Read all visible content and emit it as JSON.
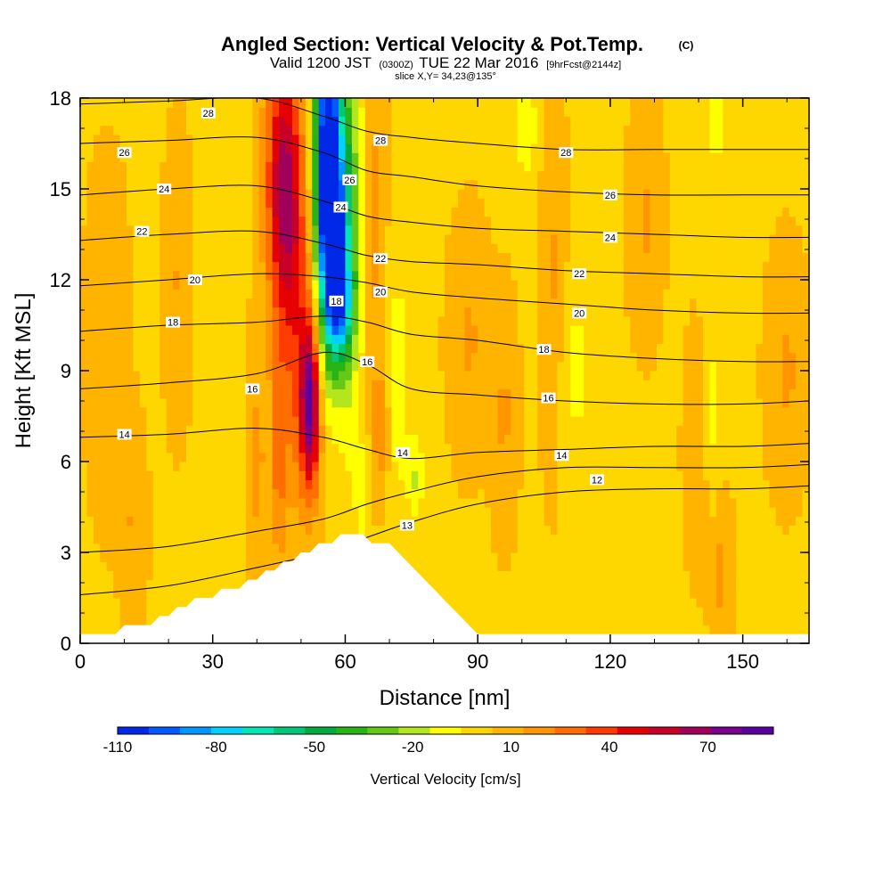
{
  "title": {
    "main": "Angled Section: Vertical Velocity & Pot.Temp.",
    "main_suffix": "(C)",
    "valid_prefix": "Valid 1200 JST",
    "valid_z": "(0300Z)",
    "valid_date": "TUE 22 Mar 2016",
    "fcst": "[9hrFcst@2144z]",
    "slice": "slice X,Y= 34,23@135°"
  },
  "chart_data": {
    "type": "heatmap",
    "title": "Angled Section: Vertical Velocity & Pot.Temp.",
    "xlabel": "Distance [nm]",
    "ylabel": "Height [Kft MSL]",
    "xlim": [
      0,
      165
    ],
    "ylim": [
      0,
      18
    ],
    "xticks": [
      0,
      30,
      60,
      90,
      120,
      150
    ],
    "yticks": [
      0,
      3,
      6,
      9,
      12,
      15,
      18
    ],
    "colorbar": {
      "title": "Vertical Velocity [cm/s]",
      "tick_labels": [
        "-110",
        "-80",
        "-50",
        "-20",
        "10",
        "40",
        "70"
      ],
      "tick_values": [
        -110,
        -80,
        -50,
        -20,
        10,
        40,
        70
      ],
      "range": [
        -110,
        90
      ],
      "colors": [
        "#0028e6",
        "#005aff",
        "#0096ff",
        "#00d2ff",
        "#00e6b4",
        "#00c878",
        "#00aa3c",
        "#28b414",
        "#64c814",
        "#b4e61e",
        "#ffff00",
        "#ffd700",
        "#ffb400",
        "#ff9600",
        "#ff6e00",
        "#ff3c00",
        "#e60000",
        "#c80028",
        "#a0005a",
        "#78008c",
        "#5a00a0"
      ]
    },
    "terrain": [
      [
        0,
        0.3
      ],
      [
        8,
        0.3
      ],
      [
        10,
        0.6
      ],
      [
        16,
        0.6
      ],
      [
        18,
        0.9
      ],
      [
        20,
        0.9
      ],
      [
        22,
        1.2
      ],
      [
        24,
        1.2
      ],
      [
        26,
        1.5
      ],
      [
        30,
        1.5
      ],
      [
        32,
        1.8
      ],
      [
        36,
        1.8
      ],
      [
        38,
        2.1
      ],
      [
        40,
        2.1
      ],
      [
        42,
        2.4
      ],
      [
        44,
        2.4
      ],
      [
        46,
        2.7
      ],
      [
        48,
        2.7
      ],
      [
        50,
        3.0
      ],
      [
        52,
        3.0
      ],
      [
        54,
        3.3
      ],
      [
        57,
        3.3
      ],
      [
        59,
        3.6
      ],
      [
        64,
        3.6
      ],
      [
        66,
        3.3
      ],
      [
        70,
        3.3
      ],
      [
        72,
        3.0
      ],
      [
        74,
        2.7
      ],
      [
        76,
        2.4
      ],
      [
        78,
        2.1
      ],
      [
        80,
        1.8
      ],
      [
        82,
        1.5
      ],
      [
        84,
        1.2
      ],
      [
        86,
        0.9
      ],
      [
        88,
        0.6
      ],
      [
        90,
        0.3
      ],
      [
        165,
        0.3
      ]
    ],
    "series": [
      {
        "name": "12",
        "x": [
          0,
          20,
          40,
          55,
          65,
          75,
          90,
          110,
          130,
          150,
          165
        ],
        "y": [
          1.6,
          1.9,
          2.5,
          3.0,
          3.5,
          4.0,
          4.6,
          5.0,
          5.1,
          5.1,
          5.2
        ]
      },
      {
        "name": "13",
        "x": [
          0,
          20,
          40,
          55,
          65,
          75,
          90,
          110,
          130,
          150,
          165
        ],
        "y": [
          3.0,
          3.2,
          3.7,
          4.1,
          4.6,
          5.0,
          5.5,
          5.8,
          5.8,
          5.8,
          5.9
        ]
      },
      {
        "name": "14",
        "x": [
          0,
          20,
          40,
          55,
          65,
          75,
          90,
          110,
          130,
          150,
          165
        ],
        "y": [
          6.8,
          6.9,
          7.1,
          6.8,
          6.4,
          6.1,
          6.3,
          6.4,
          6.5,
          6.5,
          6.6
        ]
      },
      {
        "name": "16",
        "x": [
          0,
          20,
          40,
          55,
          65,
          75,
          90,
          110,
          130,
          150,
          165
        ],
        "y": [
          8.4,
          8.6,
          8.9,
          9.6,
          9.2,
          8.4,
          8.2,
          8.0,
          7.9,
          7.9,
          8.0
        ]
      },
      {
        "name": "18",
        "x": [
          0,
          20,
          40,
          55,
          65,
          75,
          90,
          110,
          130,
          150,
          165
        ],
        "y": [
          10.3,
          10.5,
          10.6,
          10.8,
          10.6,
          10.2,
          10.0,
          9.6,
          9.4,
          9.3,
          9.3
        ]
      },
      {
        "name": "20",
        "x": [
          0,
          20,
          40,
          55,
          65,
          75,
          90,
          110,
          130,
          150,
          165
        ],
        "y": [
          11.8,
          12.0,
          12.2,
          12.1,
          11.9,
          11.6,
          11.4,
          11.2,
          11.0,
          10.9,
          10.9
        ]
      },
      {
        "name": "22",
        "x": [
          0,
          20,
          40,
          55,
          65,
          75,
          90,
          110,
          130,
          150,
          165
        ],
        "y": [
          13.3,
          13.5,
          13.6,
          13.2,
          12.8,
          12.6,
          12.5,
          12.3,
          12.2,
          12.1,
          12.1
        ]
      },
      {
        "name": "24",
        "x": [
          0,
          20,
          40,
          55,
          65,
          75,
          90,
          110,
          130,
          150,
          165
        ],
        "y": [
          14.8,
          15.0,
          15.1,
          14.6,
          14.1,
          13.9,
          13.7,
          13.6,
          13.5,
          13.4,
          13.4
        ]
      },
      {
        "name": "26",
        "x": [
          0,
          20,
          40,
          55,
          65,
          75,
          90,
          110,
          130,
          150,
          165
        ],
        "y": [
          16.5,
          16.6,
          16.7,
          16.2,
          15.6,
          15.4,
          15.1,
          14.9,
          14.8,
          14.8,
          14.8
        ]
      },
      {
        "name": "28",
        "x": [
          0,
          20,
          40,
          55,
          65,
          75,
          90,
          110,
          130,
          150,
          165
        ],
        "y": [
          17.8,
          17.9,
          18.0,
          17.4,
          16.9,
          16.7,
          16.5,
          16.3,
          16.3,
          16.3,
          16.3
        ]
      }
    ],
    "contour_labels": [
      {
        "text": "28",
        "x": 29,
        "y": 17.5
      },
      {
        "text": "26",
        "x": 10,
        "y": 16.2
      },
      {
        "text": "24",
        "x": 19,
        "y": 15.0
      },
      {
        "text": "22",
        "x": 14,
        "y": 13.6
      },
      {
        "text": "20",
        "x": 26,
        "y": 12.0
      },
      {
        "text": "18",
        "x": 21,
        "y": 10.6
      },
      {
        "text": "16",
        "x": 39,
        "y": 8.4
      },
      {
        "text": "14",
        "x": 10,
        "y": 6.9
      },
      {
        "text": "28",
        "x": 68,
        "y": 16.6
      },
      {
        "text": "26",
        "x": 61,
        "y": 15.3
      },
      {
        "text": "24",
        "x": 59,
        "y": 14.4
      },
      {
        "text": "22",
        "x": 68,
        "y": 12.7
      },
      {
        "text": "20",
        "x": 68,
        "y": 11.6
      },
      {
        "text": "18",
        "x": 58,
        "y": 11.3
      },
      {
        "text": "16",
        "x": 65,
        "y": 9.3
      },
      {
        "text": "14",
        "x": 73,
        "y": 6.3
      },
      {
        "text": "13",
        "x": 74,
        "y": 3.9
      },
      {
        "text": "28",
        "x": 110,
        "y": 16.2
      },
      {
        "text": "26",
        "x": 120,
        "y": 14.8
      },
      {
        "text": "24",
        "x": 120,
        "y": 13.4
      },
      {
        "text": "22",
        "x": 113,
        "y": 12.2
      },
      {
        "text": "20",
        "x": 113,
        "y": 10.9
      },
      {
        "text": "18",
        "x": 105,
        "y": 9.7
      },
      {
        "text": "16",
        "x": 106,
        "y": 8.1
      },
      {
        "text": "14",
        "x": 109,
        "y": 6.2
      },
      {
        "text": "12",
        "x": 117,
        "y": 5.4
      }
    ],
    "velocity_field": [
      {
        "x": 56,
        "y": 17.0,
        "sx": 2.0,
        "sy": 4.5,
        "amp": -110
      },
      {
        "x": 57.5,
        "y": 13.5,
        "sx": 2.2,
        "sy": 2.5,
        "amp": -85
      },
      {
        "x": 59,
        "y": 11.2,
        "sx": 1.8,
        "sy": 1.2,
        "amp": -45
      },
      {
        "x": 61,
        "y": 14.0,
        "sx": 2.0,
        "sy": 5.0,
        "amp": -30
      },
      {
        "x": 46,
        "y": 16.0,
        "sx": 2.8,
        "sy": 3.0,
        "amp": 45
      },
      {
        "x": 47,
        "y": 13.0,
        "sx": 3.0,
        "sy": 3.0,
        "amp": 30
      },
      {
        "x": 52,
        "y": 7.8,
        "sx": 1.5,
        "sy": 1.8,
        "amp": 60
      },
      {
        "x": 51,
        "y": 8.5,
        "sx": 3.0,
        "sy": 3.0,
        "amp": 25
      },
      {
        "x": 45,
        "y": 6.0,
        "sx": 1.5,
        "sy": 2.5,
        "amp": 22
      },
      {
        "x": 40,
        "y": 6.0,
        "sx": 1.4,
        "sy": 2.5,
        "amp": 14
      },
      {
        "x": 67,
        "y": 14.0,
        "sx": 1.5,
        "sy": 4.0,
        "amp": 14
      },
      {
        "x": 68,
        "y": 7.0,
        "sx": 1.6,
        "sy": 1.5,
        "amp": 15
      },
      {
        "x": 72,
        "y": 8.5,
        "sx": 1.8,
        "sy": 3.0,
        "amp": -15
      },
      {
        "x": 76,
        "y": 5.5,
        "sx": 1.2,
        "sy": 1.0,
        "amp": -18
      },
      {
        "x": 64,
        "y": 5.0,
        "sx": 1.2,
        "sy": 1.2,
        "amp": -14
      },
      {
        "x": 88,
        "y": 10.0,
        "sx": 3.0,
        "sy": 2.5,
        "amp": 12
      },
      {
        "x": 96,
        "y": 7.5,
        "sx": 2.0,
        "sy": 2.5,
        "amp": 12
      },
      {
        "x": 101,
        "y": 17.0,
        "sx": 2.0,
        "sy": 1.2,
        "amp": -15
      },
      {
        "x": 112,
        "y": 9.0,
        "sx": 2.5,
        "sy": 2.0,
        "amp": -12
      },
      {
        "x": 107,
        "y": 12.0,
        "sx": 2.0,
        "sy": 4.0,
        "amp": 12
      },
      {
        "x": 128,
        "y": 14.0,
        "sx": 2.5,
        "sy": 2.5,
        "amp": 12
      },
      {
        "x": 140,
        "y": 6.5,
        "sx": 2.0,
        "sy": 2.5,
        "amp": 13
      },
      {
        "x": 143,
        "y": 7.5,
        "sx": 1.8,
        "sy": 2.5,
        "amp": -13
      },
      {
        "x": 145,
        "y": 2.5,
        "sx": 1.6,
        "sy": 1.8,
        "amp": 14
      },
      {
        "x": 144,
        "y": 17.3,
        "sx": 1.6,
        "sy": 1.0,
        "amp": -16
      },
      {
        "x": 160,
        "y": 9.0,
        "sx": 3.0,
        "sy": 2.5,
        "amp": 12
      },
      {
        "x": 6,
        "y": 10.0,
        "sx": 3.0,
        "sy": 3.5,
        "amp": 11
      },
      {
        "x": 12,
        "y": 4.0,
        "sx": 2.0,
        "sy": 2.0,
        "amp": 11
      },
      {
        "x": 22,
        "y": 12.0,
        "sx": 2.0,
        "sy": 3.0,
        "amp": 11
      }
    ]
  }
}
